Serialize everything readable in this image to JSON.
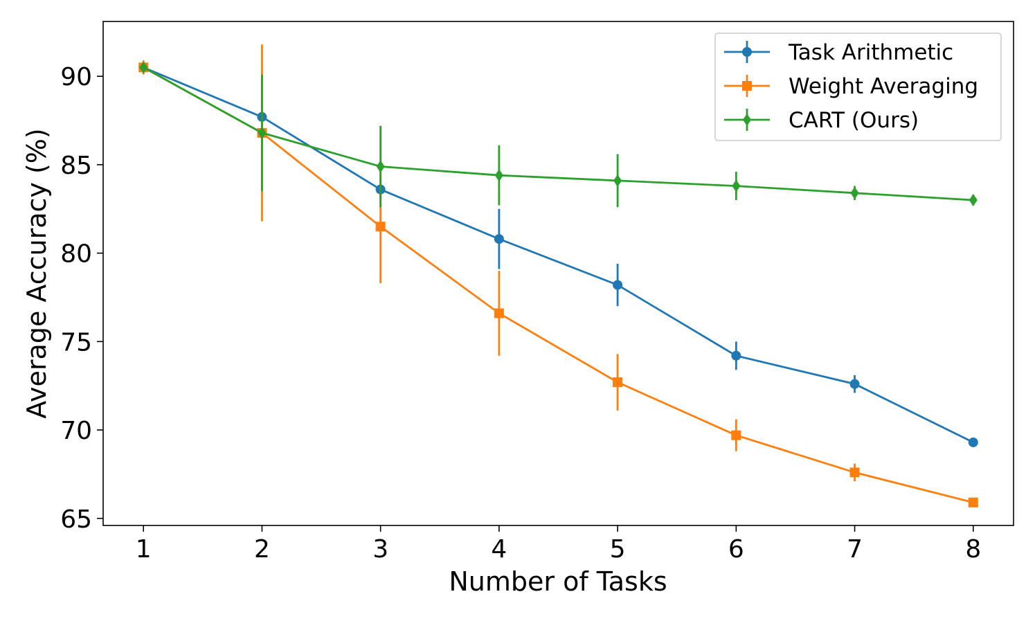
{
  "chart_data": {
    "type": "line",
    "title": "",
    "xlabel": "Number of Tasks",
    "ylabel": "Average Accuracy (%)",
    "x": [
      1,
      2,
      3,
      4,
      5,
      6,
      7,
      8
    ],
    "xlim": [
      0.66,
      8.34
    ],
    "ylim": [
      64.6,
      93.1
    ],
    "xticks": [
      1,
      2,
      3,
      4,
      5,
      6,
      7,
      8
    ],
    "yticks": [
      65,
      70,
      75,
      80,
      85,
      90
    ],
    "grid": false,
    "legend_position": "top-right",
    "series": [
      {
        "name": "Task Arithmetic",
        "color": "#1f77b4",
        "marker": "circle",
        "values": [
          90.5,
          87.7,
          83.6,
          80.8,
          78.2,
          74.2,
          72.6,
          69.3
        ],
        "errors": [
          0.3,
          0.5,
          0.6,
          1.7,
          1.2,
          0.8,
          0.5,
          0.2
        ]
      },
      {
        "name": "Weight Averaging",
        "color": "#ff7f0e",
        "marker": "square",
        "values": [
          90.5,
          86.8,
          81.5,
          76.6,
          72.7,
          69.7,
          67.6,
          65.9
        ],
        "errors": [
          0.4,
          5.0,
          3.2,
          2.4,
          1.6,
          0.9,
          0.5,
          0.2
        ]
      },
      {
        "name": "CART (Ours)",
        "color": "#2ca02c",
        "marker": "diamond",
        "values": [
          90.5,
          86.8,
          84.9,
          84.4,
          84.1,
          83.8,
          83.4,
          83.0
        ],
        "errors": [
          0.2,
          3.3,
          2.3,
          1.7,
          1.5,
          0.8,
          0.4,
          0.3
        ]
      }
    ]
  }
}
